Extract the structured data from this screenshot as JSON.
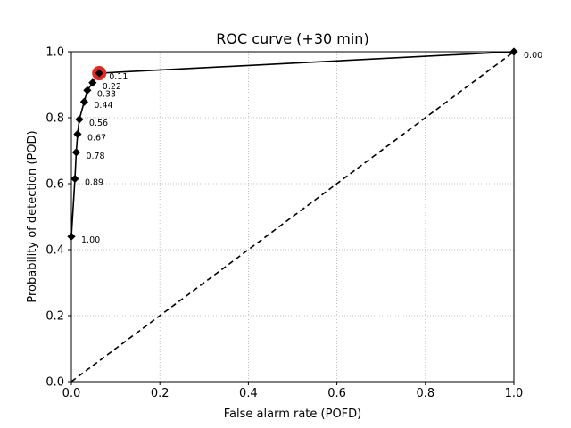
{
  "chart_data": {
    "type": "line",
    "title": "ROC curve (+30 min)",
    "xlabel": "False alarm rate (POFD)",
    "ylabel": "Probability of detection (POD)",
    "xlim": [
      0,
      1
    ],
    "ylim": [
      0,
      1
    ],
    "x_ticks": [
      "0.0",
      "0.2",
      "0.4",
      "0.6",
      "0.8",
      "1.0"
    ],
    "y_ticks": [
      "0.0",
      "0.2",
      "0.4",
      "0.6",
      "0.8",
      "1.0"
    ],
    "grid": true,
    "series": [
      {
        "type": "line",
        "color": "#000000",
        "marker": "diamond",
        "points": [
          {
            "x": 0.0,
            "y": 0.44,
            "label": "1.00"
          },
          {
            "x": 0.008,
            "y": 0.615,
            "label": "0.89"
          },
          {
            "x": 0.011,
            "y": 0.695,
            "label": "0.78"
          },
          {
            "x": 0.014,
            "y": 0.75,
            "label": "0.67"
          },
          {
            "x": 0.018,
            "y": 0.795,
            "label": "0.56"
          },
          {
            "x": 0.029,
            "y": 0.848,
            "label": "0.44"
          },
          {
            "x": 0.036,
            "y": 0.883,
            "label": "0.33"
          },
          {
            "x": 0.048,
            "y": 0.906,
            "label": "0.22"
          },
          {
            "x": 0.063,
            "y": 0.935,
            "label": "0.11"
          },
          {
            "x": 1.0,
            "y": 1.0,
            "label": "0.00"
          }
        ]
      },
      {
        "type": "reference-diagonal",
        "style": "dashed",
        "color": "#000000",
        "points": [
          {
            "x": 0,
            "y": 0
          },
          {
            "x": 1,
            "y": 1
          }
        ]
      }
    ],
    "highlight": {
      "x": 0.063,
      "y": 0.935,
      "color": "#e8281e"
    }
  }
}
